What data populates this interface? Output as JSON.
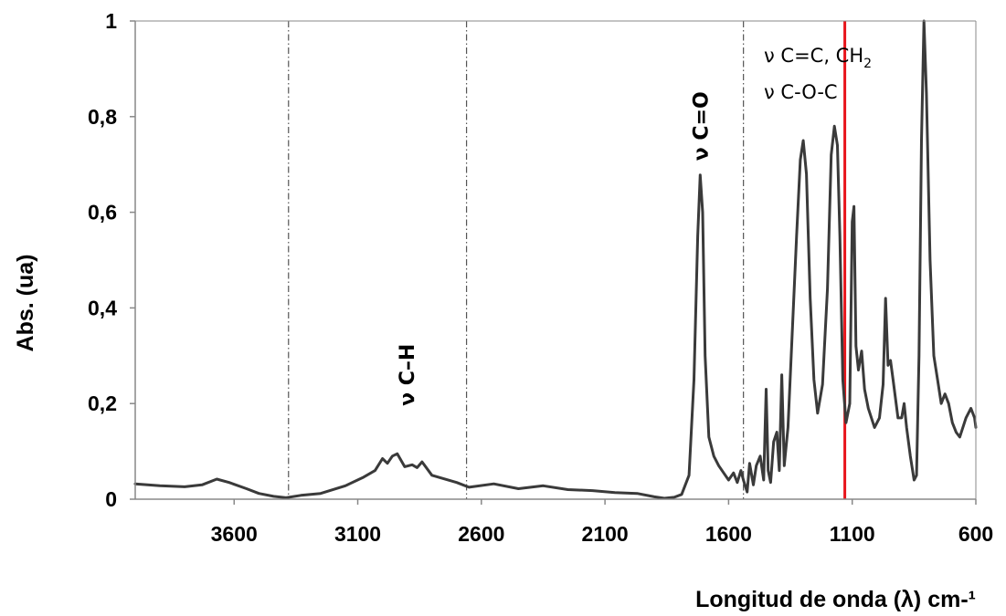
{
  "chart_data": {
    "type": "line",
    "title": "",
    "xlabel": "Longitud  de onda (λ) cm-¹",
    "ylabel": "Abs. (ua)",
    "xlim": [
      4000,
      600
    ],
    "ylim": [
      0,
      1
    ],
    "x_reversed": true,
    "x_ticks": [
      3600,
      3100,
      2600,
      2100,
      1600,
      1100,
      600
    ],
    "y_ticks": [
      {
        "value": 0,
        "label": "0"
      },
      {
        "value": 0.2,
        "label": "0,2"
      },
      {
        "value": 0.4,
        "label": "0,4"
      },
      {
        "value": 0.6,
        "label": "0,6"
      },
      {
        "value": 0.8,
        "label": "0,8"
      },
      {
        "value": 1,
        "label": "1"
      }
    ],
    "grid": false,
    "reference_lines": [
      {
        "x": 3380,
        "style": "dash-dot",
        "color": "#555555"
      },
      {
        "x": 2660,
        "style": "dash-dot",
        "color": "#555555"
      },
      {
        "x": 1540,
        "style": "dash-dot",
        "color": "#555555"
      },
      {
        "x": 1130,
        "style": "solid",
        "color": "#e8151b"
      }
    ],
    "series": [
      {
        "color": "#3a3a3a",
        "points": [
          [
            4000,
            0.032
          ],
          [
            3900,
            0.028
          ],
          [
            3800,
            0.026
          ],
          [
            3730,
            0.03
          ],
          [
            3670,
            0.042
          ],
          [
            3620,
            0.035
          ],
          [
            3550,
            0.022
          ],
          [
            3500,
            0.012
          ],
          [
            3440,
            0.006
          ],
          [
            3390,
            0.003
          ],
          [
            3330,
            0.008
          ],
          [
            3250,
            0.012
          ],
          [
            3150,
            0.028
          ],
          [
            3080,
            0.045
          ],
          [
            3030,
            0.06
          ],
          [
            3000,
            0.085
          ],
          [
            2980,
            0.075
          ],
          [
            2960,
            0.09
          ],
          [
            2940,
            0.095
          ],
          [
            2910,
            0.068
          ],
          [
            2880,
            0.072
          ],
          [
            2860,
            0.066
          ],
          [
            2840,
            0.078
          ],
          [
            2800,
            0.05
          ],
          [
            2700,
            0.035
          ],
          [
            2650,
            0.025
          ],
          [
            2550,
            0.032
          ],
          [
            2450,
            0.022
          ],
          [
            2350,
            0.028
          ],
          [
            2250,
            0.02
          ],
          [
            2150,
            0.018
          ],
          [
            2060,
            0.014
          ],
          [
            1970,
            0.012
          ],
          [
            1900,
            0.005
          ],
          [
            1860,
            0.002
          ],
          [
            1820,
            0.004
          ],
          [
            1790,
            0.01
          ],
          [
            1760,
            0.05
          ],
          [
            1740,
            0.25
          ],
          [
            1725,
            0.55
          ],
          [
            1715,
            0.678
          ],
          [
            1705,
            0.6
          ],
          [
            1695,
            0.3
          ],
          [
            1680,
            0.13
          ],
          [
            1660,
            0.09
          ],
          [
            1640,
            0.07
          ],
          [
            1620,
            0.055
          ],
          [
            1600,
            0.04
          ],
          [
            1580,
            0.055
          ],
          [
            1565,
            0.035
          ],
          [
            1550,
            0.06
          ],
          [
            1540,
            0.04
          ],
          [
            1525,
            0.015
          ],
          [
            1515,
            0.075
          ],
          [
            1500,
            0.03
          ],
          [
            1488,
            0.07
          ],
          [
            1472,
            0.09
          ],
          [
            1458,
            0.04
          ],
          [
            1448,
            0.23
          ],
          [
            1440,
            0.06
          ],
          [
            1430,
            0.035
          ],
          [
            1418,
            0.12
          ],
          [
            1405,
            0.14
          ],
          [
            1395,
            0.06
          ],
          [
            1385,
            0.26
          ],
          [
            1375,
            0.07
          ],
          [
            1360,
            0.15
          ],
          [
            1345,
            0.32
          ],
          [
            1325,
            0.55
          ],
          [
            1310,
            0.71
          ],
          [
            1298,
            0.75
          ],
          [
            1285,
            0.68
          ],
          [
            1270,
            0.42
          ],
          [
            1255,
            0.25
          ],
          [
            1240,
            0.18
          ],
          [
            1220,
            0.24
          ],
          [
            1200,
            0.44
          ],
          [
            1185,
            0.72
          ],
          [
            1172,
            0.78
          ],
          [
            1160,
            0.74
          ],
          [
            1150,
            0.55
          ],
          [
            1138,
            0.25
          ],
          [
            1125,
            0.16
          ],
          [
            1110,
            0.2
          ],
          [
            1100,
            0.58
          ],
          [
            1093,
            0.612
          ],
          [
            1085,
            0.32
          ],
          [
            1075,
            0.27
          ],
          [
            1062,
            0.31
          ],
          [
            1050,
            0.23
          ],
          [
            1035,
            0.19
          ],
          [
            1010,
            0.15
          ],
          [
            990,
            0.17
          ],
          [
            975,
            0.24
          ],
          [
            965,
            0.42
          ],
          [
            955,
            0.28
          ],
          [
            945,
            0.29
          ],
          [
            935,
            0.25
          ],
          [
            925,
            0.21
          ],
          [
            915,
            0.17
          ],
          [
            900,
            0.17
          ],
          [
            890,
            0.2
          ],
          [
            880,
            0.15
          ],
          [
            865,
            0.09
          ],
          [
            850,
            0.04
          ],
          [
            840,
            0.05
          ],
          [
            830,
            0.3
          ],
          [
            820,
            0.75
          ],
          [
            810,
            1.0
          ],
          [
            800,
            0.85
          ],
          [
            785,
            0.5
          ],
          [
            770,
            0.3
          ],
          [
            755,
            0.25
          ],
          [
            740,
            0.2
          ],
          [
            725,
            0.22
          ],
          [
            710,
            0.2
          ],
          [
            695,
            0.16
          ],
          [
            680,
            0.14
          ],
          [
            665,
            0.13
          ],
          [
            640,
            0.17
          ],
          [
            620,
            0.19
          ],
          [
            605,
            0.17
          ],
          [
            600,
            0.15
          ]
        ]
      }
    ],
    "annotations": [
      {
        "text": "ν C–H",
        "x": 2910,
        "y": 0.26,
        "rotation": -90
      },
      {
        "text": "ν C=O",
        "x": 1715,
        "y": 0.78,
        "rotation": -90
      },
      {
        "line1": "ν C=C, CH",
        "subscript": "2",
        "line2": "ν C-O-C"
      }
    ]
  }
}
